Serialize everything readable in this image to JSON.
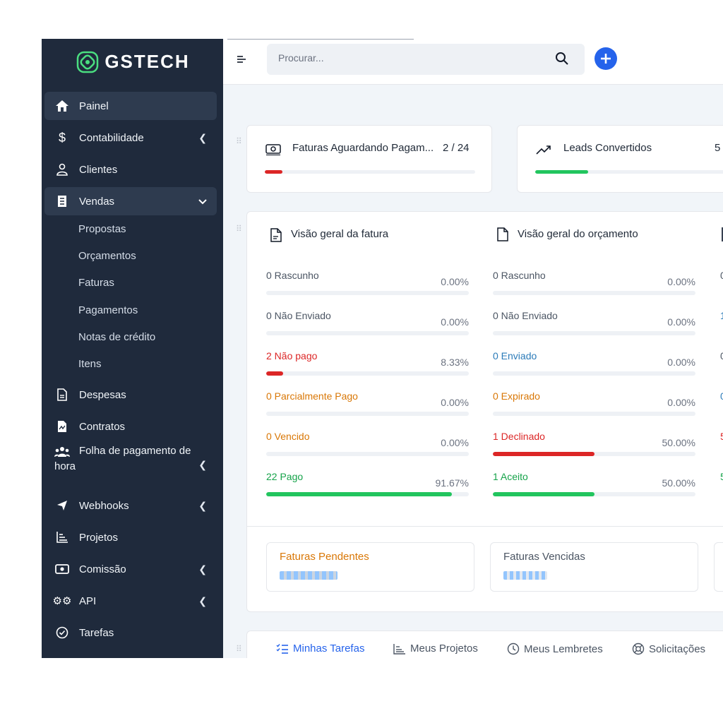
{
  "brand": {
    "name": "GSTECH"
  },
  "search": {
    "placeholder": "Procurar..."
  },
  "sidebar": {
    "items": [
      {
        "label": "Painel"
      },
      {
        "label": "Contabilidade"
      },
      {
        "label": "Clientes"
      },
      {
        "label": "Vendas"
      },
      {
        "label": "Despesas"
      },
      {
        "label": "Contratos"
      },
      {
        "label": "Folha de pagamento de",
        "label2": "hora"
      },
      {
        "label": "Webhooks"
      },
      {
        "label": "Projetos"
      },
      {
        "label": "Comissão"
      },
      {
        "label": "API"
      },
      {
        "label": "Tarefas"
      }
    ],
    "vendas_sub": [
      "Propostas",
      "Orçamentos",
      "Faturas",
      "Pagamentos",
      "Notas de crédito",
      "Itens"
    ]
  },
  "stats": [
    {
      "title": "Faturas Aguardando Pagam...",
      "value": "2 / 24",
      "progress": 0.083,
      "color": "#dc2626"
    },
    {
      "title": "Leads Convertidos",
      "value": "5",
      "progress": 0.25,
      "color": "#22c55e"
    }
  ],
  "overview": {
    "invoice_title": "Visão geral da fatura",
    "estimate_title": "Visão geral do orçamento",
    "invoice_rows": [
      {
        "label": "0 Rascunho",
        "pct": "0.00%",
        "value": 0,
        "color": "#4b5563",
        "bar": "#9ca3af"
      },
      {
        "label": "0 Não Enviado",
        "pct": "0.00%",
        "value": 0,
        "color": "#4b5563",
        "bar": "#9ca3af"
      },
      {
        "label": "2 Não pago",
        "pct": "8.33%",
        "value": 8.33,
        "color": "#dc2626",
        "bar": "#dc2626"
      },
      {
        "label": "0 Parcialmente Pago",
        "pct": "0.00%",
        "value": 0,
        "color": "#d97706",
        "bar": "#d97706"
      },
      {
        "label": "0 Vencido",
        "pct": "0.00%",
        "value": 0,
        "color": "#d97706",
        "bar": "#d97706"
      },
      {
        "label": "22 Pago",
        "pct": "91.67%",
        "value": 91.67,
        "color": "#16a34a",
        "bar": "#22c55e"
      }
    ],
    "estimate_rows": [
      {
        "label": "0 Rascunho",
        "pct": "0.00%",
        "value": 0,
        "color": "#4b5563",
        "bar": "#9ca3af"
      },
      {
        "label": "0 Não Enviado",
        "pct": "0.00%",
        "value": 0,
        "color": "#4b5563",
        "bar": "#9ca3af"
      },
      {
        "label": "0 Enviado",
        "pct": "0.00%",
        "value": 0,
        "color": "#2b7bb9",
        "bar": "#2b7bb9"
      },
      {
        "label": "0 Expirado",
        "pct": "0.00%",
        "value": 0,
        "color": "#d97706",
        "bar": "#d97706"
      },
      {
        "label": "1 Declinado",
        "pct": "50.00%",
        "value": 50,
        "color": "#dc2626",
        "bar": "#dc2626"
      },
      {
        "label": "1 Aceito",
        "pct": "50.00%",
        "value": 50,
        "color": "#16a34a",
        "bar": "#22c55e"
      }
    ],
    "third_col_labels": [
      "0",
      "1",
      "0",
      "0",
      "5",
      "5"
    ]
  },
  "summary": [
    {
      "title": "Faturas Pendentes",
      "color": "#d97706"
    },
    {
      "title": "Faturas Vencidas",
      "color": "#4b5563"
    }
  ],
  "tabs": [
    {
      "label": "Minhas Tarefas"
    },
    {
      "label": "Meus Projetos"
    },
    {
      "label": "Meus Lembretes"
    },
    {
      "label": "Solicitações"
    }
  ]
}
